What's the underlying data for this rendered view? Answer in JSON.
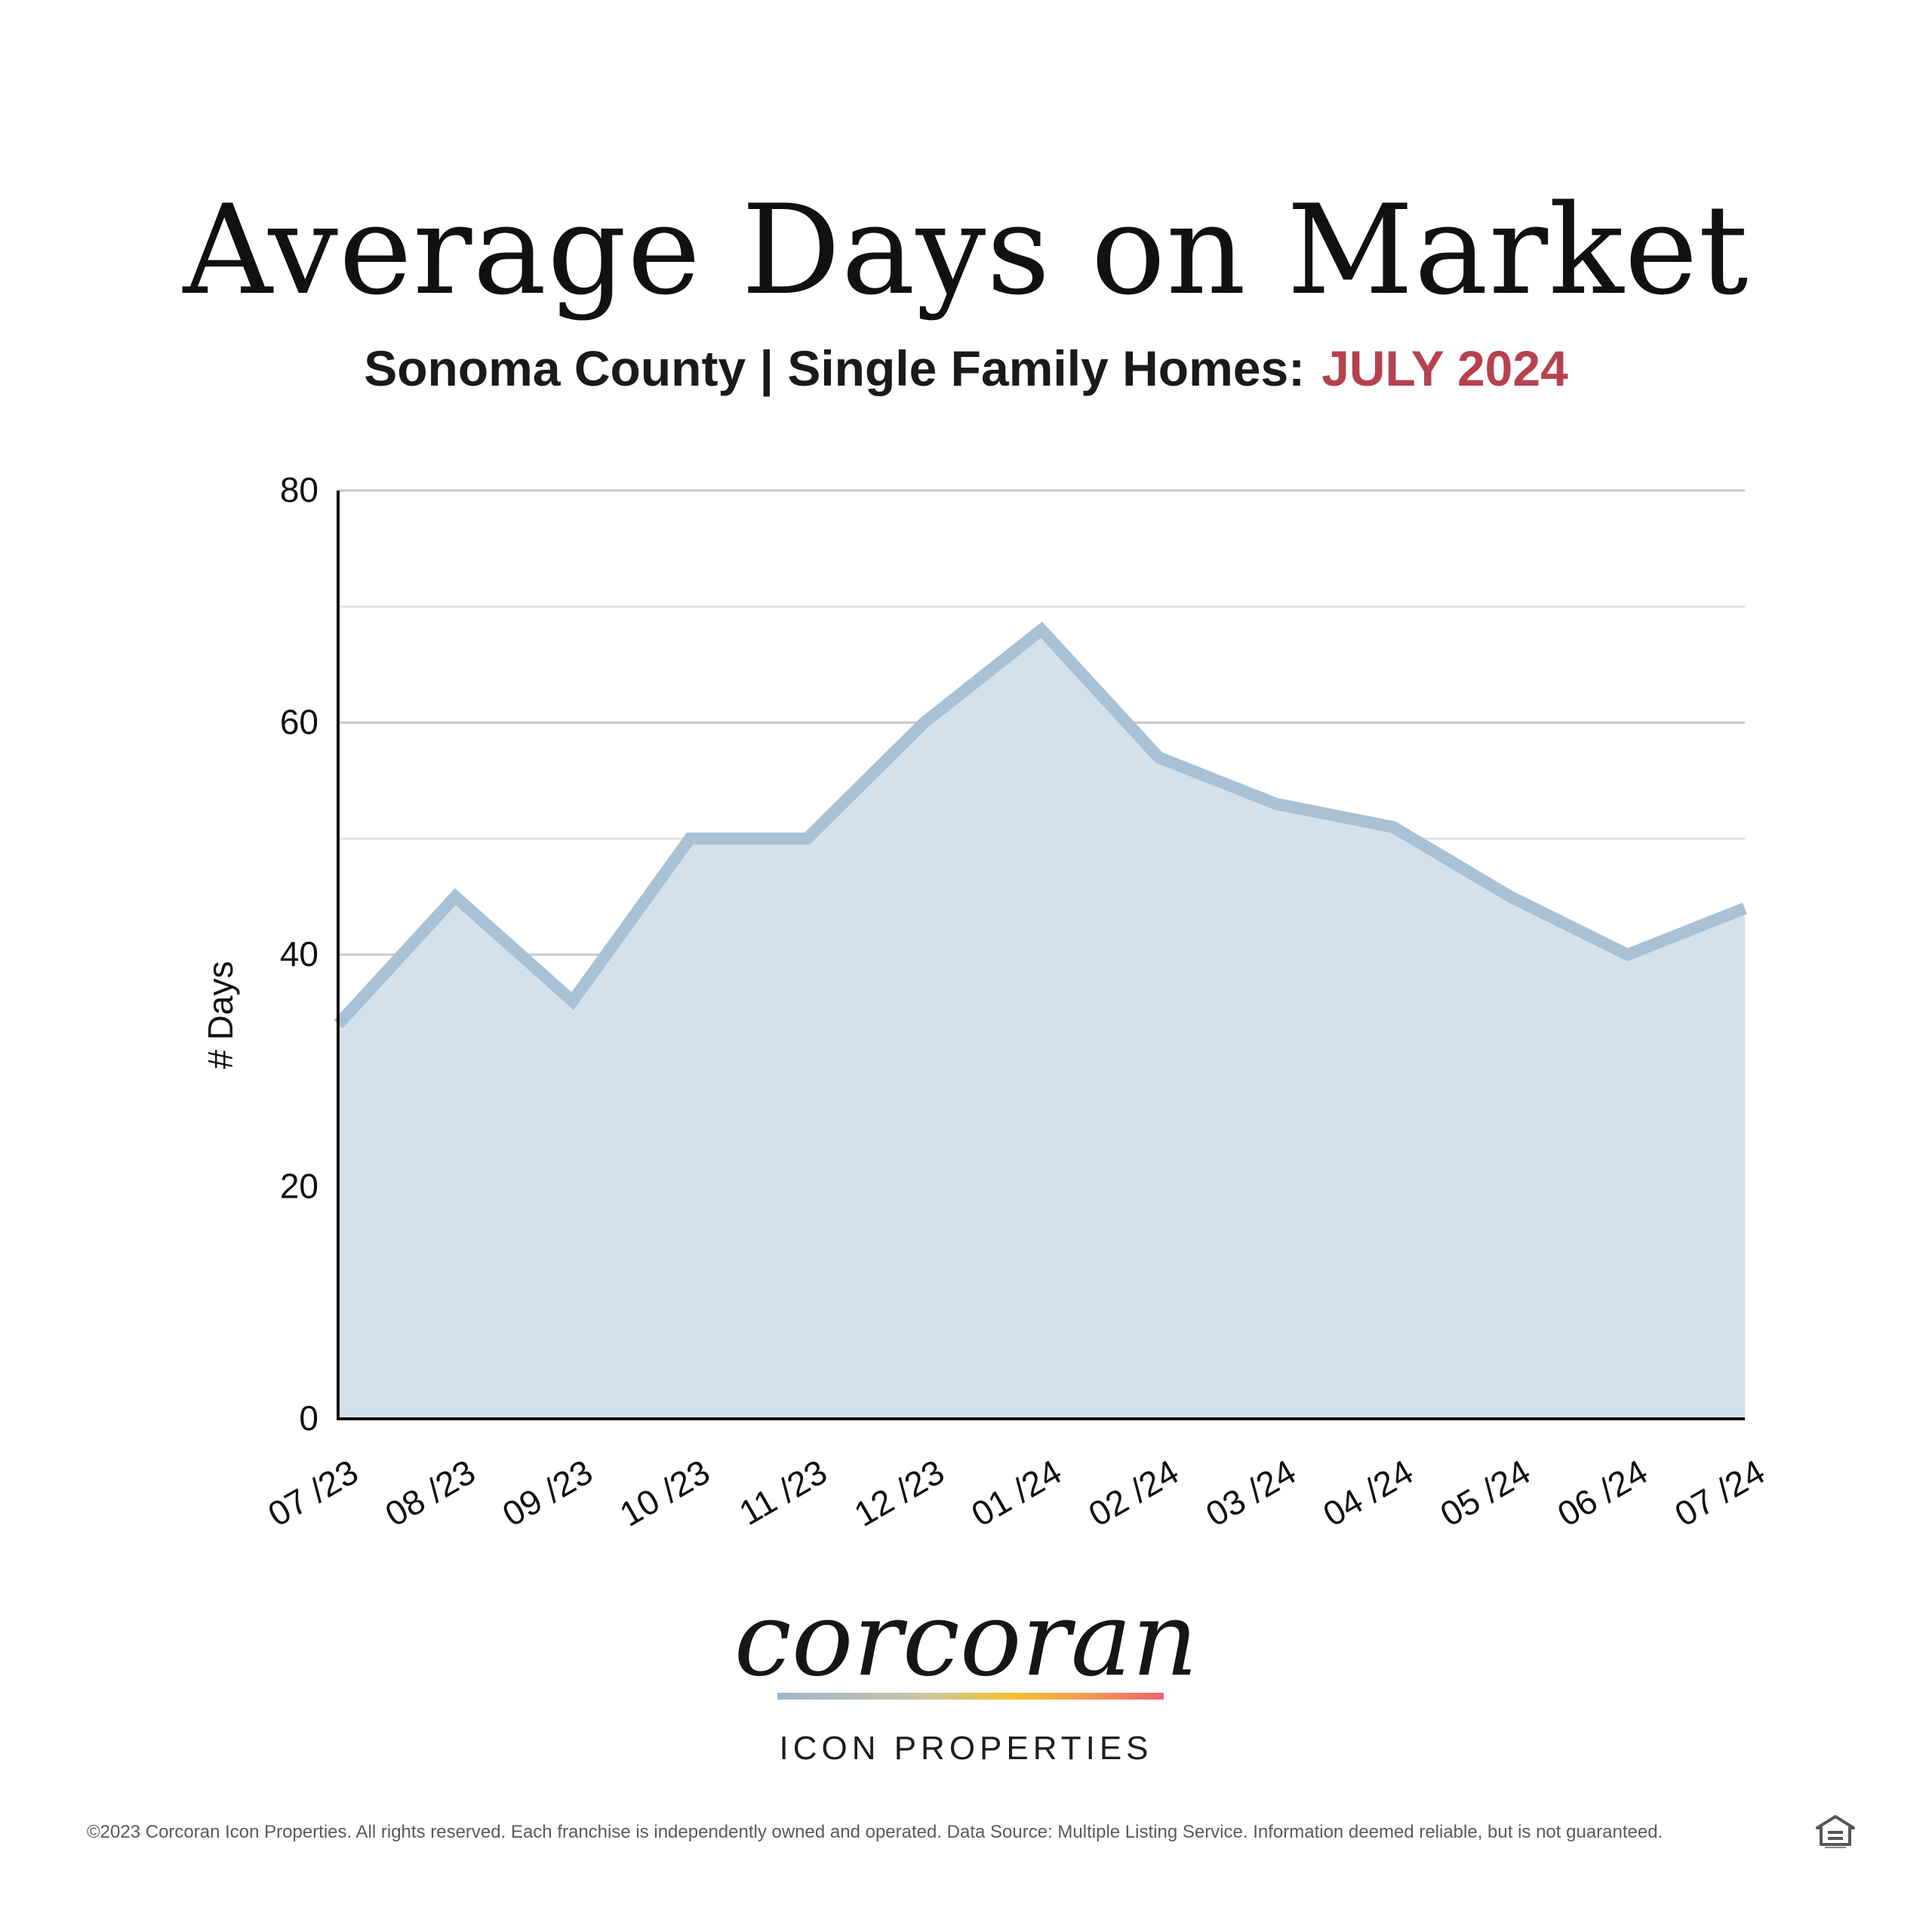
{
  "header": {
    "title": "Average Days on Market",
    "subtitle": "Sonoma County | Single Family Homes:",
    "subtitle_accent": "JULY 2024"
  },
  "chart_data": {
    "type": "area",
    "categories": [
      "07 /23",
      "08 /23",
      "09 /23",
      "10 /23",
      "11 /23",
      "12 /23",
      "01 /24",
      "02 /24",
      "03 /24",
      "04 /24",
      "05 /24",
      "06 /24",
      "07 /24"
    ],
    "series": [
      {
        "values": [
          34,
          45,
          36,
          50,
          50,
          60,
          68,
          57,
          53,
          51,
          45,
          40,
          44
        ]
      }
    ],
    "ylabel": "# Days",
    "ylim": [
      0,
      80
    ],
    "yticks": [
      0,
      20,
      40,
      60,
      80
    ],
    "grid": true,
    "line_color": "#a9c1d5",
    "fill_color": "#d5e1ea"
  },
  "branding": {
    "logo": "corcoran",
    "tagline": "ICON PROPERTIES",
    "footer": "©2023 Corcoran Icon Properties. All rights reserved. Each franchise is independently owned and operated. Data Source: Multiple Listing Service. Information deemed reliable, but is not guaranteed.",
    "icon": "equal-housing-icon"
  },
  "colors": {
    "accent": "#b5424e"
  }
}
